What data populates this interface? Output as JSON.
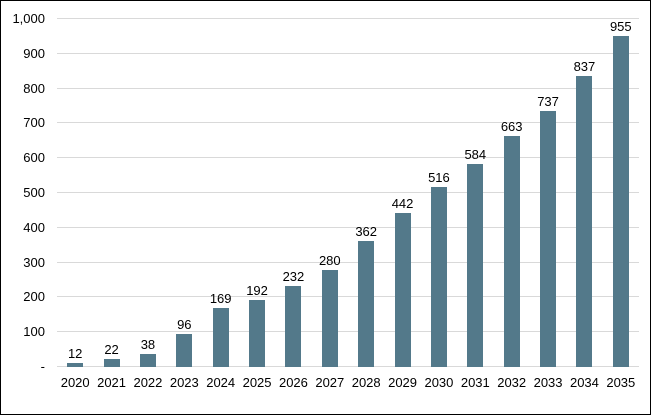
{
  "chart_data": {
    "type": "bar",
    "title": "",
    "xlabel": "",
    "ylabel": "",
    "categories": [
      "2020",
      "2021",
      "2022",
      "2023",
      "2024",
      "2025",
      "2026",
      "2027",
      "2028",
      "2029",
      "2030",
      "2031",
      "2032",
      "2033",
      "2034",
      "2035"
    ],
    "values": [
      12,
      22,
      38,
      96,
      169,
      192,
      232,
      280,
      362,
      442,
      516,
      584,
      663,
      737,
      837,
      955
    ],
    "data_labels": [
      "12",
      "22",
      "38",
      "96",
      "169",
      "192",
      "232",
      "280",
      "362",
      "442",
      "516",
      "584",
      "663",
      "737",
      "837",
      "955"
    ],
    "ylim": [
      0,
      1000
    ],
    "y_tick_interval": 100,
    "y_tick_labels": [
      "-",
      "100",
      "200",
      "300",
      "400",
      "500",
      "600",
      "700",
      "800",
      "900",
      "1,000"
    ],
    "grid": "horizontal",
    "legend": "none",
    "colors": {
      "bar": "#53798A",
      "gridline": "#D9D9D9",
      "axis_text": "#000000",
      "background": "#FFFFFF",
      "border": "#000000"
    }
  }
}
